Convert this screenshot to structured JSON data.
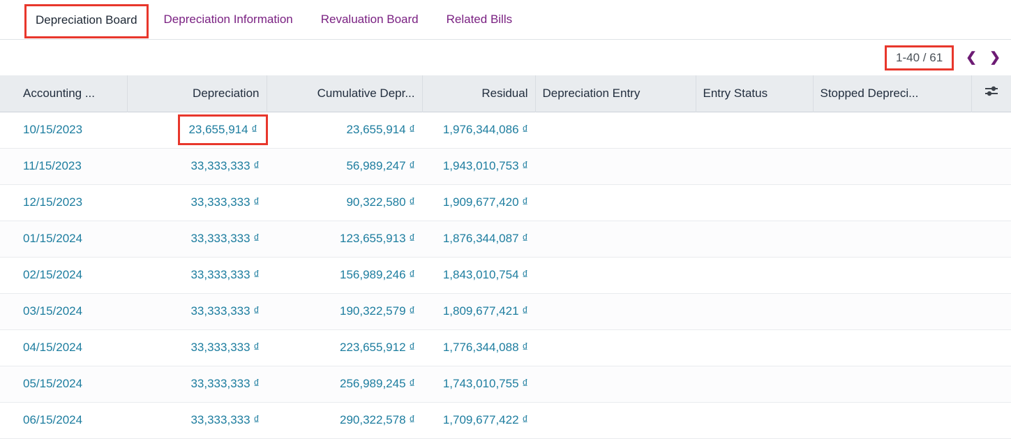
{
  "tabs": {
    "items": [
      {
        "label": "Depreciation Board",
        "active": true,
        "annotated": true
      },
      {
        "label": "Depreciation Information",
        "active": false,
        "annotated": false
      },
      {
        "label": "Revaluation Board",
        "active": false,
        "annotated": false
      },
      {
        "label": "Related Bills",
        "active": false,
        "annotated": false
      }
    ]
  },
  "pager": {
    "range": "1-40 / 61",
    "prev_icon": "❮",
    "next_icon": "❯",
    "annotated": true
  },
  "table": {
    "columns": [
      {
        "label": "Accounting ...",
        "align": "left"
      },
      {
        "label": "Depreciation",
        "align": "right"
      },
      {
        "label": "Cumulative Depr...",
        "align": "right"
      },
      {
        "label": "Residual",
        "align": "right"
      },
      {
        "label": "Depreciation Entry",
        "align": "left"
      },
      {
        "label": "Entry Status",
        "align": "left"
      },
      {
        "label": "Stopped Depreci...",
        "align": "left"
      }
    ],
    "optional_columns_icon": "sliders-icon",
    "rows": [
      {
        "accounting_date": "10/15/2023",
        "depreciation": "23,655,914 ₫",
        "cumulative_depreciation": "23,655,914 ₫",
        "residual": "1,976,344,086 ₫"
      },
      {
        "accounting_date": "11/15/2023",
        "depreciation": "33,333,333 ₫",
        "cumulative_depreciation": "56,989,247 ₫",
        "residual": "1,943,010,753 ₫"
      },
      {
        "accounting_date": "12/15/2023",
        "depreciation": "33,333,333 ₫",
        "cumulative_depreciation": "90,322,580 ₫",
        "residual": "1,909,677,420 ₫"
      },
      {
        "accounting_date": "01/15/2024",
        "depreciation": "33,333,333 ₫",
        "cumulative_depreciation": "123,655,913 ₫",
        "residual": "1,876,344,087 ₫"
      },
      {
        "accounting_date": "02/15/2024",
        "depreciation": "33,333,333 ₫",
        "cumulative_depreciation": "156,989,246 ₫",
        "residual": "1,843,010,754 ₫"
      },
      {
        "accounting_date": "03/15/2024",
        "depreciation": "33,333,333 ₫",
        "cumulative_depreciation": "190,322,579 ₫",
        "residual": "1,809,677,421 ₫"
      },
      {
        "accounting_date": "04/15/2024",
        "depreciation": "33,333,333 ₫",
        "cumulative_depreciation": "223,655,912 ₫",
        "residual": "1,776,344,088 ₫"
      },
      {
        "accounting_date": "05/15/2024",
        "depreciation": "33,333,333 ₫",
        "cumulative_depreciation": "256,989,245 ₫",
        "residual": "1,743,010,755 ₫"
      },
      {
        "accounting_date": "06/15/2024",
        "depreciation": "33,333,333 ₫",
        "cumulative_depreciation": "290,322,578 ₫",
        "residual": "1,709,677,422 ₫"
      }
    ],
    "annotated_cell": {
      "row": 0,
      "field": "depreciation"
    }
  },
  "colors": {
    "accent_purple": "#7a2182",
    "link_teal": "#1d7d9f",
    "annotation_red": "#e8372c",
    "header_background": "#e9ecef",
    "active_tab_text": "#1d2734"
  }
}
